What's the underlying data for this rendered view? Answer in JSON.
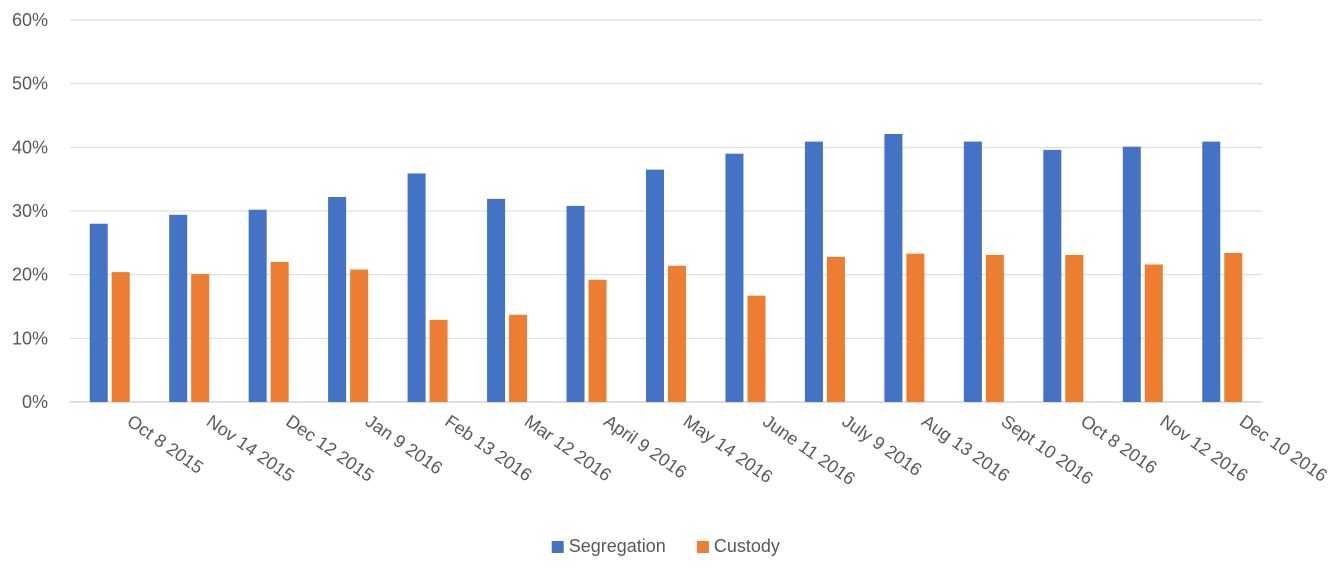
{
  "chart_data": {
    "type": "bar",
    "title": "",
    "xlabel": "",
    "ylabel": "",
    "ylim": [
      0,
      60
    ],
    "y_ticks": [
      "0%",
      "10%",
      "20%",
      "30%",
      "40%",
      "50%",
      "60%"
    ],
    "y_tick_values": [
      0,
      10,
      20,
      30,
      40,
      50,
      60
    ],
    "grid": true,
    "legend_position": "bottom",
    "categories": [
      "Oct 8 2015",
      "Nov 14 2015",
      "Dec 12 2015",
      "Jan 9 2016",
      "Feb 13 2016",
      "Mar 12 2016",
      "April 9 2016",
      "May 14 2016",
      "June 11 2016",
      "July 9 2016",
      "Aug 13 2016",
      "Sept 10 2016",
      "Oct 8 2016",
      "Nov 12 2016",
      "Dec 10 2016"
    ],
    "series": [
      {
        "name": "Segregation",
        "color": "#4472C4",
        "values": [
          28,
          29.4,
          30.2,
          32.2,
          35.9,
          31.9,
          30.8,
          36.5,
          39,
          40.9,
          42.1,
          40.9,
          39.6,
          40.1,
          40.9
        ]
      },
      {
        "name": "Custody",
        "color": "#ED7D31",
        "values": [
          20.4,
          20.1,
          22,
          20.8,
          12.9,
          13.7,
          19.2,
          21.4,
          16.7,
          22.8,
          23.3,
          23.1,
          23.1,
          21.6,
          23.4
        ]
      }
    ]
  }
}
